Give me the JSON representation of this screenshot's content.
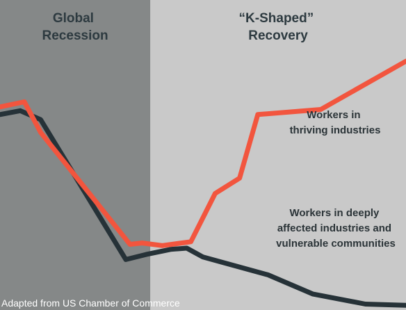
{
  "colors": {
    "background": "#c9c9c9",
    "recession_shade": "#858888",
    "thriving_series": "#f2553e",
    "affected_series": "#263238",
    "heading_text": "#2d3a40",
    "source_text": "#ffffff"
  },
  "chart_data": {
    "type": "line",
    "title": "",
    "xlabel": "",
    "ylabel": "",
    "axes_visible": false,
    "grid": false,
    "xlim": [
      0,
      100
    ],
    "ylim": [
      0,
      100
    ],
    "shaded_regions": [
      {
        "label_lines": [
          "Global",
          "Recession"
        ],
        "x_start": 0,
        "x_end": 37
      }
    ],
    "region_labels": [
      {
        "label_lines": [
          "“K-Shaped”",
          "Recovery"
        ],
        "x_start": 37,
        "x_end": 100
      }
    ],
    "series": [
      {
        "name": "Workers in thriving industries",
        "label_lines": [
          "Workers in",
          "thriving industries"
        ],
        "x": [
          0,
          6,
          10,
          32,
          35,
          40,
          47,
          53,
          59,
          63.5,
          79,
          100
        ],
        "y": [
          76,
          78,
          66,
          22,
          22.5,
          21.5,
          23,
          42,
          48,
          73,
          75,
          94
        ]
      },
      {
        "name": "Workers in deeply affected industries and vulnerable communities",
        "label_lines": [
          "Workers in deeply",
          "affected industries and",
          "vulnerable communities"
        ],
        "x": [
          0,
          5,
          10,
          31,
          36,
          42,
          46,
          50,
          66,
          77,
          90,
          100
        ],
        "y": [
          73,
          74.5,
          71,
          16,
          18,
          20,
          20.5,
          17,
          10,
          2.5,
          -1.5,
          -2
        ]
      }
    ]
  },
  "footer": {
    "source": "Adapted from US Chamber of Commerce"
  }
}
